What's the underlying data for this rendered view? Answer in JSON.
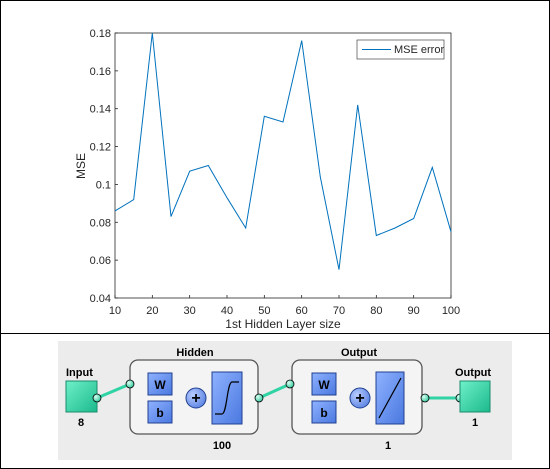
{
  "chart_data": {
    "type": "line",
    "title": "",
    "xlabel": "1st Hidden Layer size",
    "ylabel": "MSE",
    "xlim": [
      10,
      100
    ],
    "ylim": [
      0.04,
      0.18
    ],
    "xticks": [
      "10",
      "20",
      "30",
      "40",
      "50",
      "60",
      "70",
      "80",
      "90",
      "100"
    ],
    "yticks": [
      "0.04",
      "0.06",
      "0.08",
      "0.1",
      "0.12",
      "0.14",
      "0.16",
      "0.18"
    ],
    "grid": false,
    "legend_position": "top-right",
    "series": [
      {
        "name": "MSE error",
        "color": "#0072BD",
        "x": [
          10,
          15,
          20,
          25,
          30,
          35,
          40,
          45,
          50,
          55,
          60,
          65,
          70,
          75,
          80,
          85,
          90,
          95,
          100
        ],
        "y": [
          0.086,
          0.092,
          0.18,
          0.083,
          0.107,
          0.11,
          0.093,
          0.077,
          0.136,
          0.133,
          0.176,
          0.104,
          0.055,
          0.142,
          0.073,
          0.077,
          0.082,
          0.109,
          0.075
        ]
      }
    ]
  },
  "network": {
    "input_label": "Input",
    "input_size": "8",
    "hidden_label": "Hidden",
    "hidden_size": "100",
    "output_layer_label": "Output",
    "output_layer_size": "1",
    "output_label": "Output",
    "output_size": "1",
    "weight_symbol": "W",
    "bias_symbol": "b",
    "sum_symbol": "+"
  }
}
